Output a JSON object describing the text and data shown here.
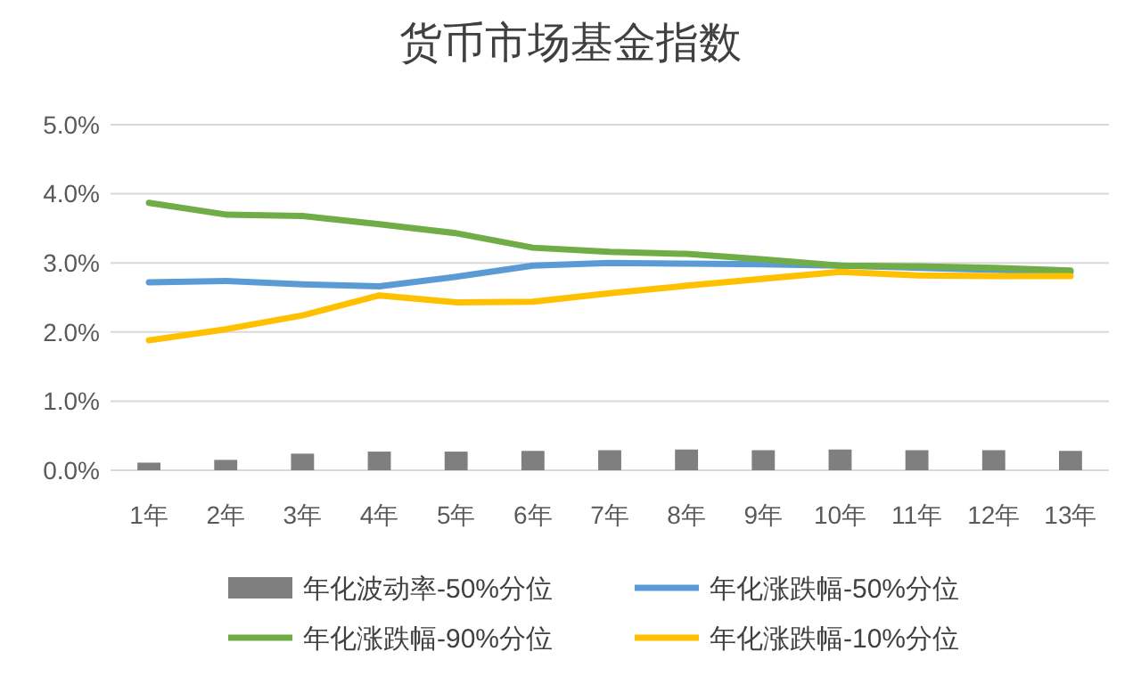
{
  "chart_data": {
    "type": "line",
    "title": "货币市场基金指数",
    "categories": [
      "1年",
      "2年",
      "3年",
      "4年",
      "5年",
      "6年",
      "7年",
      "8年",
      "9年",
      "10年",
      "11年",
      "12年",
      "13年"
    ],
    "series": [
      {
        "name": "年化波动率-50%分位",
        "type": "bar",
        "color": "#7f7f7f",
        "values": [
          0.11,
          0.15,
          0.24,
          0.27,
          0.27,
          0.28,
          0.29,
          0.3,
          0.29,
          0.3,
          0.29,
          0.29,
          0.28
        ]
      },
      {
        "name": "年化涨跌幅-50%分位",
        "color": "#5b9bd5",
        "values": [
          2.72,
          2.74,
          2.69,
          2.66,
          2.8,
          2.96,
          3.0,
          2.99,
          2.98,
          2.96,
          2.93,
          2.9,
          2.87
        ]
      },
      {
        "name": "年化涨跌幅-90%分位",
        "color": "#70ad47",
        "values": [
          3.87,
          3.7,
          3.68,
          3.56,
          3.43,
          3.22,
          3.16,
          3.13,
          3.05,
          2.96,
          2.95,
          2.93,
          2.89
        ]
      },
      {
        "name": "年化涨跌幅-10%分位",
        "color": "#ffc000",
        "values": [
          1.88,
          2.04,
          2.24,
          2.53,
          2.43,
          2.44,
          2.56,
          2.67,
          2.77,
          2.87,
          2.82,
          2.81,
          2.81
        ]
      }
    ],
    "ylim": [
      0,
      5
    ],
    "yticks": [
      {
        "value": 0,
        "label": "0.0%"
      },
      {
        "value": 1,
        "label": "1.0%"
      },
      {
        "value": 2,
        "label": "2.0%"
      },
      {
        "value": 3,
        "label": "3.0%"
      },
      {
        "value": 4,
        "label": "4.0%"
      },
      {
        "value": 5,
        "label": "5.0%"
      }
    ],
    "grid": "y",
    "legend": "bottom",
    "marker": "none",
    "line_style": "solid"
  }
}
